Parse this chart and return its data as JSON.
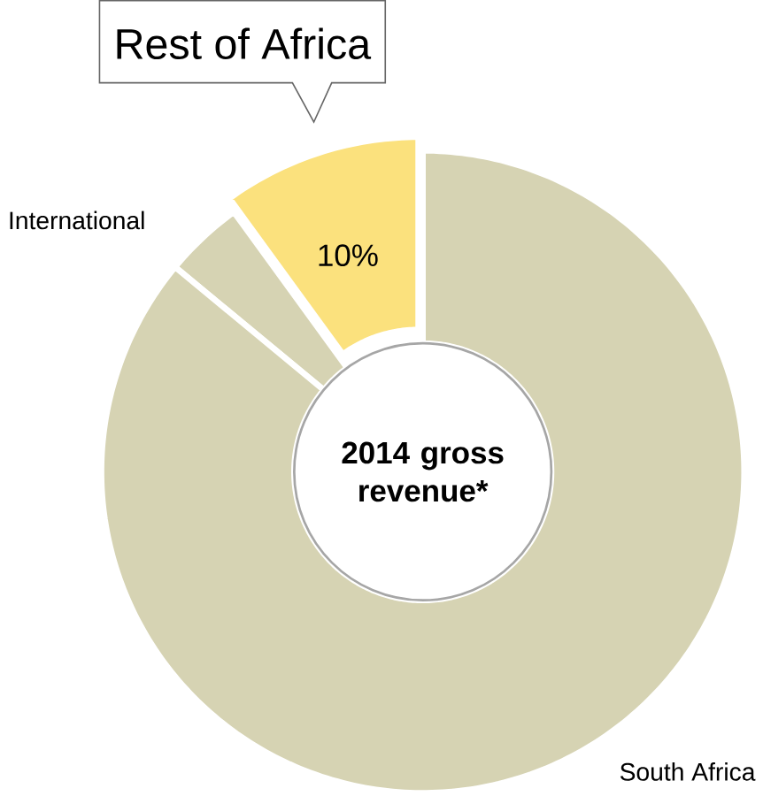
{
  "chart_data": {
    "type": "donut",
    "title": "2014 gross revenue*",
    "categories": [
      "Rest of Africa",
      "International",
      "South Africa"
    ],
    "values": [
      10,
      4,
      86
    ],
    "colors": [
      "#fbe17d",
      "#d6d3b3",
      "#d6d3b3"
    ],
    "value_labels": [
      "10%",
      null,
      null
    ]
  }
}
